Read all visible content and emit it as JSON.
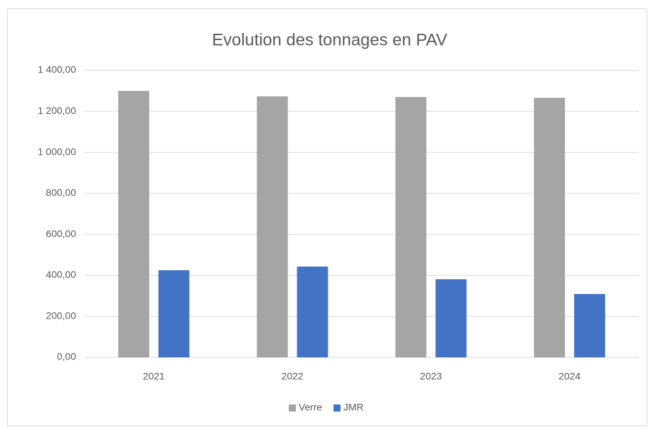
{
  "chart_data": {
    "type": "bar",
    "title": "Evolution des tonnages en PAV",
    "categories": [
      "2021",
      "2022",
      "2023",
      "2024"
    ],
    "series": [
      {
        "name": "Verre",
        "color": "#a5a5a5",
        "values": [
          1300,
          1273,
          1270,
          1266
        ]
      },
      {
        "name": "JMR",
        "color": "#4472c4",
        "values": [
          425,
          443,
          381,
          309
        ]
      }
    ],
    "ylim": [
      0,
      1400
    ],
    "yticks": [
      {
        "value": 0,
        "label": "0,00"
      },
      {
        "value": 200,
        "label": "200,00"
      },
      {
        "value": 400,
        "label": "400,00"
      },
      {
        "value": 600,
        "label": "600,00"
      },
      {
        "value": 800,
        "label": "800,00"
      },
      {
        "value": 1000,
        "label": "1 000,00"
      },
      {
        "value": 1200,
        "label": "1 200,00"
      },
      {
        "value": 1400,
        "label": "1 400,00"
      }
    ],
    "grid": true,
    "legend": "bottom"
  }
}
